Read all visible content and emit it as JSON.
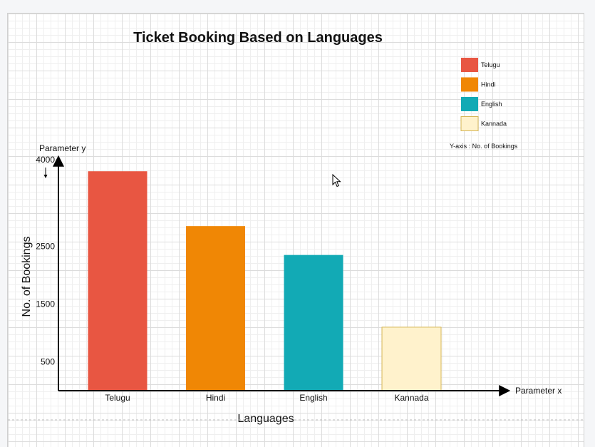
{
  "chart_data": {
    "type": "bar",
    "title": "Ticket Booking Based on Languages",
    "categories": [
      "Telugu",
      "Hindi",
      "English",
      "Kannada"
    ],
    "values": [
      3800,
      2850,
      2350,
      1100
    ],
    "colors": [
      "#e85642",
      "#f08705",
      "#12aab5",
      "#fff2cc"
    ],
    "ylim": [
      0,
      4000
    ],
    "yticks": [
      500,
      1500,
      2500,
      4000
    ],
    "xlabel": "Languages",
    "ylabel": "No. of Bookings",
    "x_param_label": "Parameter x",
    "y_param_label": "Parameter y",
    "legend": {
      "placement": "top-right",
      "entries": [
        "Telugu",
        "Hindi",
        "English",
        "Kannada"
      ],
      "note": "Y-axis : No. of Bookings"
    },
    "grid": true
  }
}
